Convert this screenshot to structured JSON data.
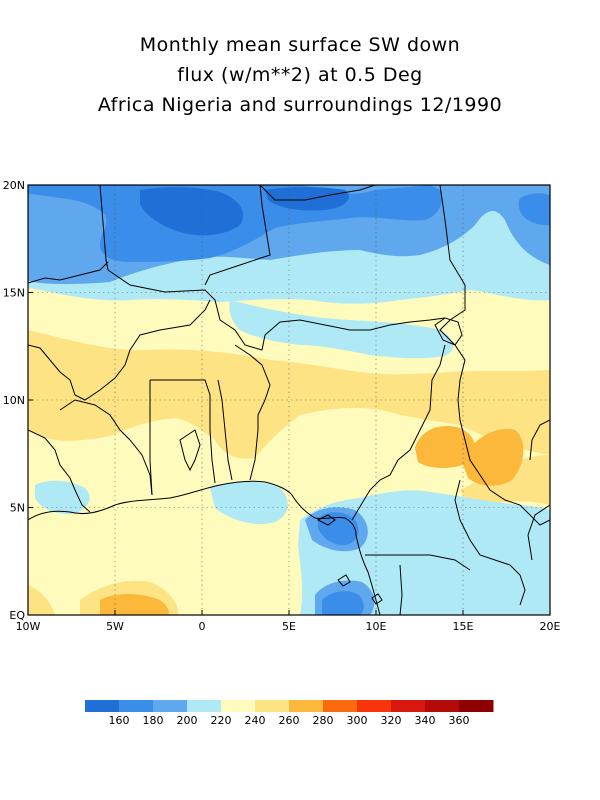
{
  "title_lines": [
    "Monthly mean surface SW down",
    "flux (w/m**2) at 0.5 Deg",
    "Africa Nigeria and surroundings 12/1990"
  ],
  "map": {
    "lon_range": [
      -10,
      20
    ],
    "lat_range": [
      0,
      20
    ],
    "grid": "dotted",
    "x_ticks": [
      {
        "value": -10,
        "label": "10W"
      },
      {
        "value": -5,
        "label": "5W"
      },
      {
        "value": 0,
        "label": "0"
      },
      {
        "value": 5,
        "label": "5E"
      },
      {
        "value": 10,
        "label": "10E"
      },
      {
        "value": 15,
        "label": "15E"
      },
      {
        "value": 20,
        "label": "20E"
      }
    ],
    "y_ticks": [
      {
        "value": 0,
        "label": "EQ"
      },
      {
        "value": 5,
        "label": "5N"
      },
      {
        "value": 10,
        "label": "10N"
      },
      {
        "value": 15,
        "label": "15N"
      },
      {
        "value": 20,
        "label": "20N"
      }
    ]
  },
  "colorbar": {
    "colors": [
      "#1f6fd6",
      "#3a8de8",
      "#5fa8ee",
      "#b0e9f6",
      "#fefbbd",
      "#fde383",
      "#fbb83a",
      "#fb6a0e",
      "#f8340b",
      "#d8180f",
      "#b40a0a",
      "#8e0000"
    ],
    "labels": [
      "160",
      "180",
      "200",
      "220",
      "240",
      "260",
      "280",
      "300",
      "320",
      "340",
      "360"
    ]
  },
  "palette": {
    "v180": "#3a8de8",
    "v200": "#5fa8ee",
    "v220": "#b0e9f6",
    "v240": "#fefbbd",
    "v260": "#fde383",
    "v280": "#fbb83a"
  }
}
